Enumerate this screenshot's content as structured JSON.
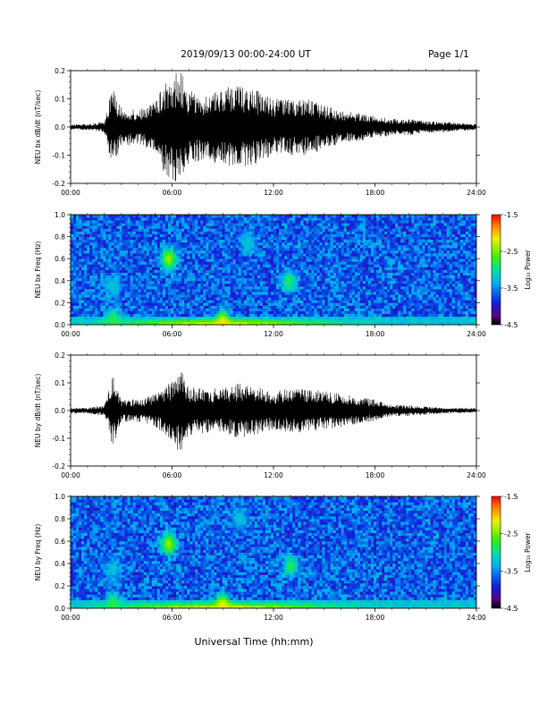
{
  "header": {
    "title": "2019/09/13  00:00-24:00 UT",
    "page": "Page 1/1"
  },
  "footer": {
    "xlabel": "Universal Time (hh:mm)"
  },
  "colorbar": {
    "label": "Log₁₀ Power",
    "ticks": [
      "-1.5",
      "-2.5",
      "-3.5",
      "-4.5"
    ]
  },
  "colors": {
    "spectrogram_background": "#1a33c8",
    "trace": "#000000"
  },
  "chart_data": [
    {
      "type": "line",
      "title": "",
      "ylabel": "NEU bx dB/dt (nT/sec)",
      "xlabel": "",
      "xticks": [
        "00:00",
        "06:00",
        "12:00",
        "18:00",
        "24:00"
      ],
      "yticks": [
        "0.2",
        "0.1",
        "0.0",
        "-0.1",
        "-0.2"
      ],
      "xlim": [
        0,
        24
      ],
      "ylim": [
        -0.2,
        0.2
      ],
      "series": [
        {
          "name": "",
          "x": [
            0,
            1,
            2,
            2.5,
            3,
            4,
            5,
            5.5,
            6,
            6.5,
            7,
            8,
            9,
            10,
            11,
            12,
            13,
            14,
            15,
            16,
            17,
            18,
            19,
            20,
            21,
            22,
            23,
            24
          ],
          "y_envelope": [
            0.01,
            0.01,
            0.02,
            0.15,
            0.07,
            0.06,
            0.09,
            0.16,
            0.19,
            0.2,
            0.13,
            0.12,
            0.14,
            0.15,
            0.13,
            0.1,
            0.1,
            0.1,
            0.08,
            0.06,
            0.05,
            0.04,
            0.03,
            0.03,
            0.02,
            0.02,
            0.015,
            0.01
          ]
        }
      ]
    },
    {
      "type": "heatmap",
      "title": "",
      "ylabel": "NEU bx Freq (Hz)",
      "xlabel": "",
      "xticks": [
        "00:00",
        "06:00",
        "12:00",
        "18:00",
        "24:00"
      ],
      "yticks": [
        "1.0",
        "0.8",
        "0.6",
        "0.4",
        "0.2",
        "0.0"
      ],
      "xlim": [
        0,
        24
      ],
      "ylim": [
        0,
        1
      ],
      "zlim": [
        -4.5,
        -1.5
      ],
      "features": [
        {
          "x": 5.8,
          "y": 0.6,
          "log10_power": -2.4
        },
        {
          "x": 2.5,
          "y": 0.35,
          "log10_power": -3.2
        },
        {
          "x": 12.9,
          "y": 0.4,
          "log10_power": -2.8
        },
        {
          "x": 10.5,
          "y": 0.75,
          "log10_power": -3.2
        },
        {
          "x": 2.5,
          "y": 0.05,
          "log10_power": -2.8
        },
        {
          "x": 9.0,
          "y": 0.03,
          "log10_power": -2.2
        }
      ]
    },
    {
      "type": "line",
      "title": "",
      "ylabel": "NEU by dB/dt (nT/sec)",
      "xlabel": "",
      "xticks": [
        "00:00",
        "06:00",
        "12:00",
        "18:00",
        "24:00"
      ],
      "yticks": [
        "0.2",
        "0.1",
        "0.0",
        "-0.1",
        "-0.2"
      ],
      "xlim": [
        0,
        24
      ],
      "ylim": [
        -0.2,
        0.2
      ],
      "series": [
        {
          "name": "",
          "x": [
            0,
            1,
            2,
            2.5,
            3,
            4,
            5,
            5.5,
            6,
            6.5,
            7,
            8,
            9,
            10,
            11,
            12,
            13,
            14,
            15,
            16,
            17,
            18,
            19,
            20,
            21,
            22,
            23,
            24
          ],
          "y_envelope": [
            0.01,
            0.01,
            0.02,
            0.13,
            0.04,
            0.04,
            0.06,
            0.08,
            0.11,
            0.16,
            0.09,
            0.08,
            0.08,
            0.1,
            0.09,
            0.07,
            0.08,
            0.08,
            0.07,
            0.06,
            0.05,
            0.04,
            0.02,
            0.02,
            0.015,
            0.01,
            0.01,
            0.008
          ]
        }
      ]
    },
    {
      "type": "heatmap",
      "title": "",
      "ylabel": "NEU by Freq (Hz)",
      "xlabel": "",
      "xticks": [
        "00:00",
        "06:00",
        "12:00",
        "18:00",
        "24:00"
      ],
      "yticks": [
        "1.0",
        "0.8",
        "0.6",
        "0.4",
        "0.2",
        "0.0"
      ],
      "xlim": [
        0,
        24
      ],
      "ylim": [
        0,
        1
      ],
      "zlim": [
        -4.5,
        -1.5
      ],
      "features": [
        {
          "x": 5.8,
          "y": 0.58,
          "log10_power": -2.4
        },
        {
          "x": 2.5,
          "y": 0.35,
          "log10_power": -3.2
        },
        {
          "x": 13.0,
          "y": 0.38,
          "log10_power": -2.8
        },
        {
          "x": 10.0,
          "y": 0.8,
          "log10_power": -3.2
        },
        {
          "x": 2.5,
          "y": 0.05,
          "log10_power": -2.8
        },
        {
          "x": 9.0,
          "y": 0.03,
          "log10_power": -2.2
        }
      ]
    }
  ]
}
